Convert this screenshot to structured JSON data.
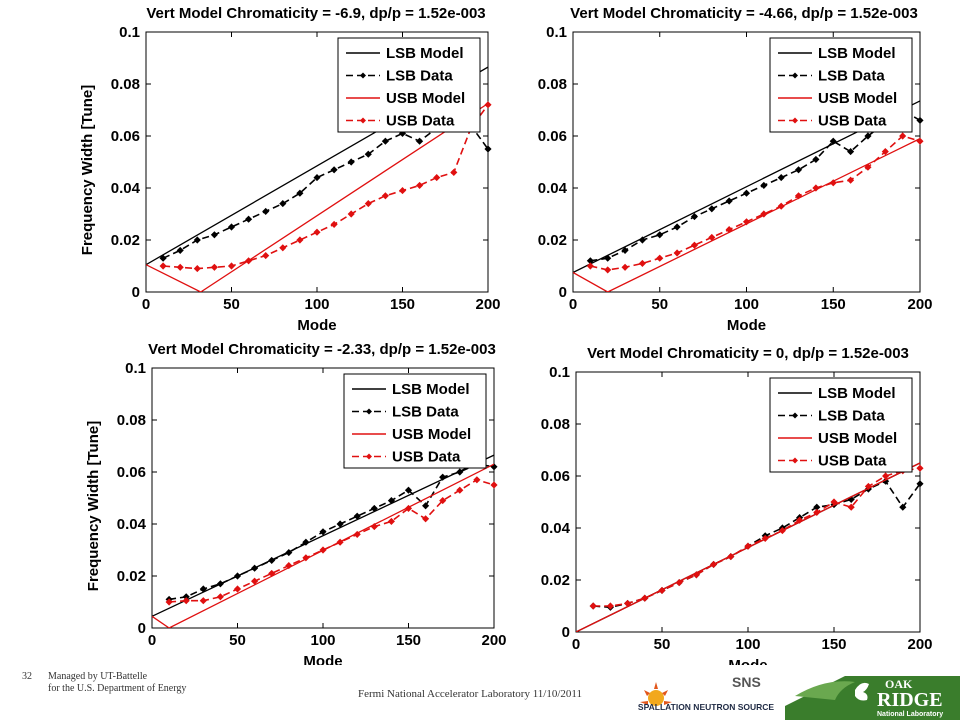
{
  "charts": [
    {
      "title": "Vert Model Chromaticity = -6.9, dp/p = 1.52e-003",
      "ylabel": "Frequency Width [Tune]",
      "xlabel": "Mode",
      "xticks": [
        "0",
        "50",
        "100",
        "150",
        "200"
      ],
      "yticks": [
        "0",
        "0.02",
        "0.04",
        "0.06",
        "0.08",
        "0.1"
      ]
    },
    {
      "title": "Vert Model Chromaticity = -4.66, dp/p = 1.52e-003",
      "ylabel": "",
      "xlabel": "Mode",
      "xticks": [
        "0",
        "50",
        "100",
        "150",
        "200"
      ],
      "yticks": [
        "0",
        "0.02",
        "0.04",
        "0.06",
        "0.08",
        "0.1"
      ]
    },
    {
      "title": "Vert Model Chromaticity = -2.33, dp/p = 1.52e-003",
      "ylabel": "Frequency Width [Tune]",
      "xlabel": "Mode",
      "xticks": [
        "0",
        "50",
        "100",
        "150",
        "200"
      ],
      "yticks": [
        "0",
        "0.02",
        "0.04",
        "0.06",
        "0.08",
        "0.1"
      ]
    },
    {
      "title": "Vert Model Chromaticity = 0, dp/p = 1.52e-003",
      "ylabel": "",
      "xlabel": "Mode",
      "xticks": [
        "0",
        "50",
        "100",
        "150",
        "200"
      ],
      "yticks": [
        "0",
        "0.02",
        "0.04",
        "0.06",
        "0.08",
        "0.1"
      ]
    }
  ],
  "legend": [
    "LSB Model",
    "LSB Data",
    "USB Model",
    "USB Data"
  ],
  "colors": {
    "lsb": "#000000",
    "usb": "#e01010"
  },
  "chart_data": [
    {
      "type": "line",
      "title": "Vert Model Chromaticity = -6.9, dp/p = 1.52e-003",
      "xlabel": "Mode",
      "ylabel": "Frequency Width [Tune]",
      "xlim": [
        0,
        200
      ],
      "ylim": [
        0,
        0.1
      ],
      "grid": false,
      "legend_position": "top-right",
      "series": [
        {
          "name": "LSB Model",
          "x": [
            0,
            200
          ],
          "y": [
            0.0105,
            0.0865
          ]
        },
        {
          "name": "LSB Data",
          "x": [
            10,
            20,
            30,
            40,
            50,
            60,
            70,
            80,
            90,
            100,
            110,
            120,
            130,
            140,
            150,
            160,
            170,
            180,
            190,
            200
          ],
          "y": [
            0.013,
            0.016,
            0.02,
            0.022,
            0.025,
            0.028,
            0.031,
            0.034,
            0.038,
            0.044,
            0.047,
            0.05,
            0.053,
            0.058,
            0.061,
            0.058,
            0.063,
            0.068,
            0.064,
            0.055
          ]
        },
        {
          "name": "USB Model",
          "x": [
            0,
            32,
            200
          ],
          "y": [
            0.0105,
            0.0,
            0.0725
          ]
        },
        {
          "name": "USB Data",
          "x": [
            10,
            20,
            30,
            40,
            50,
            60,
            70,
            80,
            90,
            100,
            110,
            120,
            130,
            140,
            150,
            160,
            170,
            180,
            190,
            200
          ],
          "y": [
            0.01,
            0.0095,
            0.009,
            0.0095,
            0.01,
            0.012,
            0.014,
            0.017,
            0.02,
            0.023,
            0.026,
            0.03,
            0.034,
            0.037,
            0.039,
            0.041,
            0.044,
            0.046,
            0.063,
            0.072
          ]
        }
      ]
    },
    {
      "type": "line",
      "title": "Vert Model Chromaticity = -4.66, dp/p = 1.52e-003",
      "xlabel": "Mode",
      "ylabel": "",
      "xlim": [
        0,
        200
      ],
      "ylim": [
        0,
        0.1
      ],
      "grid": false,
      "legend_position": "top-right",
      "series": [
        {
          "name": "LSB Model",
          "x": [
            0,
            200
          ],
          "y": [
            0.0075,
            0.0735
          ]
        },
        {
          "name": "LSB Data",
          "x": [
            10,
            20,
            30,
            40,
            50,
            60,
            70,
            80,
            90,
            100,
            110,
            120,
            130,
            140,
            150,
            160,
            170,
            180,
            190,
            200
          ],
          "y": [
            0.012,
            0.013,
            0.016,
            0.02,
            0.022,
            0.025,
            0.029,
            0.032,
            0.035,
            0.038,
            0.041,
            0.044,
            0.047,
            0.051,
            0.058,
            0.054,
            0.06,
            0.065,
            0.07,
            0.066
          ]
        },
        {
          "name": "USB Model",
          "x": [
            0,
            20,
            200
          ],
          "y": [
            0.0075,
            0.0,
            0.059
          ]
        },
        {
          "name": "USB Data",
          "x": [
            10,
            20,
            30,
            40,
            50,
            60,
            70,
            80,
            90,
            100,
            110,
            120,
            130,
            140,
            150,
            160,
            170,
            180,
            190,
            200
          ],
          "y": [
            0.01,
            0.0085,
            0.0095,
            0.011,
            0.013,
            0.015,
            0.018,
            0.021,
            0.024,
            0.027,
            0.03,
            0.033,
            0.037,
            0.04,
            0.042,
            0.043,
            0.048,
            0.054,
            0.06,
            0.058
          ]
        }
      ]
    },
    {
      "type": "line",
      "title": "Vert Model Chromaticity = -2.33, dp/p = 1.52e-003",
      "xlabel": "Mode",
      "ylabel": "Frequency Width [Tune]",
      "xlim": [
        0,
        200
      ],
      "ylim": [
        0,
        0.1
      ],
      "grid": false,
      "legend_position": "top-right",
      "series": [
        {
          "name": "LSB Model",
          "x": [
            0,
            200
          ],
          "y": [
            0.0045,
            0.0665
          ]
        },
        {
          "name": "LSB Data",
          "x": [
            10,
            20,
            30,
            40,
            50,
            60,
            70,
            80,
            90,
            100,
            110,
            120,
            130,
            140,
            150,
            160,
            170,
            180,
            190,
            200
          ],
          "y": [
            0.011,
            0.012,
            0.015,
            0.017,
            0.02,
            0.023,
            0.026,
            0.029,
            0.033,
            0.037,
            0.04,
            0.043,
            0.046,
            0.049,
            0.053,
            0.047,
            0.058,
            0.06,
            0.063,
            0.062
          ]
        },
        {
          "name": "USB Model",
          "x": [
            0,
            10,
            200
          ],
          "y": [
            0.0045,
            0.0,
            0.063
          ]
        },
        {
          "name": "USB Data",
          "x": [
            10,
            20,
            30,
            40,
            50,
            60,
            70,
            80,
            90,
            100,
            110,
            120,
            130,
            140,
            150,
            160,
            170,
            180,
            190,
            200
          ],
          "y": [
            0.01,
            0.0105,
            0.0105,
            0.012,
            0.015,
            0.018,
            0.021,
            0.024,
            0.027,
            0.03,
            0.033,
            0.036,
            0.039,
            0.041,
            0.046,
            0.042,
            0.049,
            0.053,
            0.057,
            0.055
          ]
        }
      ]
    },
    {
      "type": "line",
      "title": "Vert Model Chromaticity = 0, dp/p = 1.52e-003",
      "xlabel": "Mode",
      "ylabel": "",
      "xlim": [
        0,
        200
      ],
      "ylim": [
        0,
        0.1
      ],
      "grid": false,
      "legend_position": "top-right",
      "series": [
        {
          "name": "LSB Model",
          "x": [
            0,
            200
          ],
          "y": [
            0.0,
            0.065
          ]
        },
        {
          "name": "LSB Data",
          "x": [
            10,
            20,
            30,
            40,
            50,
            60,
            70,
            80,
            90,
            100,
            110,
            120,
            130,
            140,
            150,
            160,
            170,
            180,
            190,
            200
          ],
          "y": [
            0.01,
            0.0095,
            0.011,
            0.013,
            0.016,
            0.019,
            0.022,
            0.026,
            0.029,
            0.033,
            0.037,
            0.04,
            0.044,
            0.048,
            0.049,
            0.051,
            0.055,
            0.058,
            0.048,
            0.057
          ]
        },
        {
          "name": "USB Model",
          "x": [
            0,
            200
          ],
          "y": [
            0.0,
            0.065
          ]
        },
        {
          "name": "USB Data",
          "x": [
            10,
            20,
            30,
            40,
            50,
            60,
            70,
            80,
            90,
            100,
            110,
            120,
            130,
            140,
            150,
            160,
            170,
            180,
            190,
            200
          ],
          "y": [
            0.01,
            0.01,
            0.011,
            0.013,
            0.016,
            0.019,
            0.022,
            0.026,
            0.029,
            0.033,
            0.036,
            0.039,
            0.043,
            0.046,
            0.05,
            0.048,
            0.056,
            0.06,
            0.062,
            0.063
          ]
        }
      ]
    }
  ],
  "footer": {
    "page_number": "32",
    "managed_line1": "Managed by UT-Battelle",
    "managed_line2": "for the U.S. Department of Energy",
    "center_text": "Fermi National Accelerator Laboratory 11/10/2011",
    "sns_logo_text": "SPALLATION NEUTRON SOURCE",
    "ornl_logo_text_1": "OAK",
    "ornl_logo_text_2": "RIDGE",
    "ornl_logo_text_3": "National Laboratory"
  }
}
